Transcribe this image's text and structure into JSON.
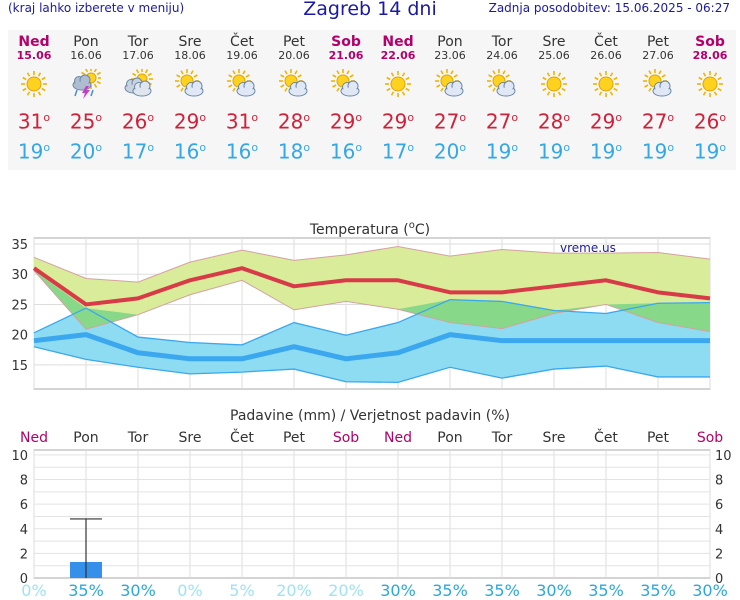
{
  "header": {
    "subtitle": "(kraj lahko izberete v meniju)",
    "title": "Zagreb 14 dni",
    "updated": "Zadnja posodobitev: 15.06.2025 - 06:27"
  },
  "forecast": {
    "days": [
      {
        "name": "Ned",
        "date": "15.06",
        "weekend": true,
        "icon": "sun-icon",
        "max": "31",
        "min": "19"
      },
      {
        "name": "Pon",
        "date": "16.06",
        "weekend": false,
        "icon": "thunderstorm-icon",
        "max": "25",
        "min": "20"
      },
      {
        "name": "Tor",
        "date": "17.06",
        "weekend": false,
        "icon": "cloudy-icon",
        "max": "26",
        "min": "17"
      },
      {
        "name": "Sre",
        "date": "18.06",
        "weekend": false,
        "icon": "partly-cloudy-icon",
        "max": "29",
        "min": "16"
      },
      {
        "name": "Čet",
        "date": "19.06",
        "weekend": false,
        "icon": "partly-cloudy-icon",
        "max": "31",
        "min": "16"
      },
      {
        "name": "Pet",
        "date": "20.06",
        "weekend": false,
        "icon": "partly-cloudy-icon",
        "max": "28",
        "min": "18"
      },
      {
        "name": "Sob",
        "date": "21.06",
        "weekend": true,
        "icon": "partly-cloudy-icon",
        "max": "29",
        "min": "16"
      },
      {
        "name": "Ned",
        "date": "22.06",
        "weekend": true,
        "icon": "sun-icon",
        "max": "29",
        "min": "17"
      },
      {
        "name": "Pon",
        "date": "23.06",
        "weekend": false,
        "icon": "partly-cloudy-icon",
        "max": "27",
        "min": "20"
      },
      {
        "name": "Tor",
        "date": "24.06",
        "weekend": false,
        "icon": "partly-cloudy-icon",
        "max": "27",
        "min": "19"
      },
      {
        "name": "Sre",
        "date": "25.06",
        "weekend": false,
        "icon": "sun-icon",
        "max": "28",
        "min": "19"
      },
      {
        "name": "Čet",
        "date": "26.06",
        "weekend": false,
        "icon": "sun-icon",
        "max": "29",
        "min": "19"
      },
      {
        "name": "Pet",
        "date": "27.06",
        "weekend": false,
        "icon": "partly-cloudy-icon",
        "max": "27",
        "min": "19"
      },
      {
        "name": "Sob",
        "date": "28.06",
        "weekend": true,
        "icon": "sun-icon",
        "max": "26",
        "min": "19"
      }
    ],
    "degree": "o"
  },
  "colors": {
    "title": "#1a1aa6",
    "weekend": "#b3006b",
    "max_line": "#d83a47",
    "min_line": "#3aa7ef",
    "max_band": "#d9ec9a",
    "min_band": "#8edcf2",
    "overlap": "#88d88a",
    "precip_bar": "#3490e8",
    "prob_low": "#9fe2f5",
    "prob_high": "#2aa8de"
  },
  "chart_data": [
    {
      "type": "line",
      "title": "Temperatura (°C)",
      "title_parts": [
        "Temperatura (",
        "o",
        "C)"
      ],
      "watermark": "vreme.us",
      "x": [
        "15.06",
        "16.06",
        "17.06",
        "18.06",
        "19.06",
        "20.06",
        "21.06",
        "22.06",
        "23.06",
        "24.06",
        "25.06",
        "26.06",
        "27.06",
        "28.06"
      ],
      "y_ticks": [
        15,
        20,
        25,
        30,
        35
      ],
      "ylim": [
        11,
        36
      ],
      "grid": true,
      "series": [
        {
          "role": "max",
          "values": [
            31,
            25,
            26,
            29,
            31,
            28,
            29,
            29,
            27,
            27,
            28,
            29,
            27,
            26
          ]
        },
        {
          "role": "max_upper",
          "values": [
            32.8,
            29.3,
            28.7,
            32,
            34,
            32.3,
            33.2,
            34.6,
            33,
            34.1,
            33.5,
            33.5,
            33.6,
            32.5
          ]
        },
        {
          "role": "max_lower",
          "values": [
            30.6,
            20.9,
            23.3,
            26.6,
            29,
            24.1,
            25.5,
            24.2,
            22,
            21,
            23.5,
            25,
            22,
            20.5
          ]
        },
        {
          "role": "min",
          "values": [
            19,
            20,
            17,
            16,
            16,
            18,
            16,
            17,
            20,
            19,
            19,
            19,
            19,
            19
          ]
        },
        {
          "role": "min_upper",
          "values": [
            20.3,
            24.4,
            19.6,
            18.7,
            18.3,
            22,
            19.9,
            22,
            25.8,
            25.5,
            24,
            23.5,
            25.2,
            25.3
          ]
        },
        {
          "role": "min_lower",
          "values": [
            18,
            15.9,
            14.6,
            13.5,
            13.8,
            14.3,
            12.2,
            12.1,
            14.6,
            12.8,
            14.3,
            14.8,
            13,
            13
          ]
        }
      ]
    },
    {
      "type": "bar",
      "title": "Padavine (mm) / Verjetnost padavin (%)",
      "categories": [
        "Ned",
        "Pon",
        "Tor",
        "Sre",
        "Čet",
        "Pet",
        "Sob",
        "Ned",
        "Pon",
        "Tor",
        "Sre",
        "Čet",
        "Pet",
        "Sob"
      ],
      "weekend": [
        true,
        false,
        false,
        false,
        false,
        false,
        true,
        true,
        false,
        false,
        false,
        false,
        false,
        true
      ],
      "values": [
        0,
        1.3,
        0,
        0,
        0,
        0,
        0,
        0,
        0,
        0,
        0,
        0,
        0,
        0
      ],
      "error_high": [
        0,
        4.8,
        0,
        0,
        0,
        0,
        0,
        0,
        0,
        0,
        0,
        0,
        0,
        0
      ],
      "probability": [
        "0%",
        "35%",
        "30%",
        "0%",
        "5%",
        "20%",
        "20%",
        "30%",
        "35%",
        "35%",
        "30%",
        "35%",
        "35%",
        "30%"
      ],
      "y_ticks": [
        0,
        2,
        4,
        6,
        8,
        10
      ],
      "ylim": [
        0,
        10.4
      ],
      "grid": true
    }
  ]
}
